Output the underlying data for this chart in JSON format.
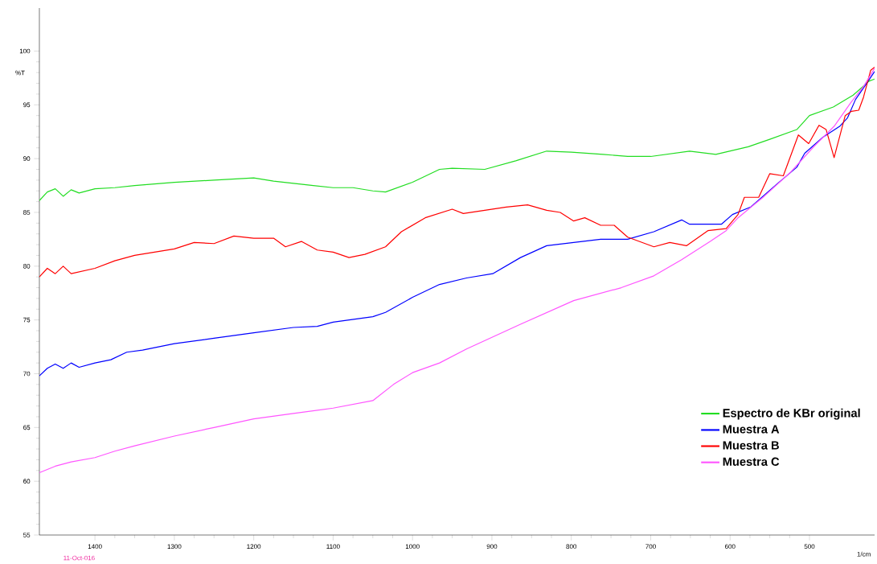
{
  "chart_data": {
    "type": "line",
    "xlabel": "1/cm",
    "ylabel": "%T",
    "annotations": [
      "11-Oct-016"
    ],
    "xlim": [
      1470,
      418
    ],
    "ylim": [
      55,
      104
    ],
    "xticks": [
      1400,
      1300,
      1200,
      1100,
      1000,
      900,
      800,
      700,
      600,
      500
    ],
    "yticks": [
      55,
      60,
      65,
      70,
      75,
      80,
      85,
      90,
      95,
      100
    ],
    "grid": false,
    "legend": "bottom right",
    "marker": "none",
    "line_style": "solid",
    "series": [
      {
        "name": "Espectro de KBr original",
        "color": "#22dd22",
        "x": [
          1470,
          1460,
          1450,
          1440,
          1430,
          1420,
          1400,
          1375,
          1350,
          1300,
          1250,
          1200,
          1175,
          1150,
          1125,
          1100,
          1075,
          1050,
          1034,
          1000,
          966,
          950,
          909,
          870,
          831,
          800,
          760,
          729,
          700,
          651,
          618,
          577,
          550,
          516,
          500,
          470,
          445,
          425,
          418
        ],
        "values": [
          86.1,
          86.9,
          87.2,
          86.5,
          87.1,
          86.8,
          87.2,
          87.3,
          87.5,
          87.8,
          88.0,
          88.2,
          87.9,
          87.7,
          87.5,
          87.3,
          87.3,
          87.0,
          86.9,
          87.8,
          89.0,
          89.1,
          89.0,
          89.8,
          90.7,
          90.6,
          90.4,
          90.2,
          90.2,
          90.7,
          90.4,
          91.1,
          91.8,
          92.7,
          94.0,
          94.8,
          95.9,
          97.2,
          97.4
        ]
      },
      {
        "name": "Muestra A",
        "color": "#0000ff",
        "x": [
          1470,
          1460,
          1450,
          1440,
          1430,
          1420,
          1400,
          1380,
          1360,
          1340,
          1300,
          1250,
          1200,
          1150,
          1120,
          1100,
          1050,
          1034,
          1000,
          966,
          932,
          899,
          864,
          831,
          797,
          763,
          729,
          696,
          661,
          651,
          611,
          597,
          574,
          540,
          516,
          506,
          483,
          462,
          452,
          442,
          428,
          418
        ],
        "values": [
          69.8,
          70.5,
          70.9,
          70.5,
          71.0,
          70.6,
          71.0,
          71.3,
          72.0,
          72.2,
          72.8,
          73.3,
          73.8,
          74.3,
          74.4,
          74.8,
          75.3,
          75.7,
          77.1,
          78.3,
          78.9,
          79.3,
          80.8,
          81.9,
          82.2,
          82.5,
          82.5,
          83.2,
          84.3,
          83.9,
          83.9,
          84.8,
          85.5,
          87.7,
          89.2,
          90.5,
          92.0,
          93.0,
          93.8,
          95.5,
          97.0,
          98.1
        ]
      },
      {
        "name": "Muestra B",
        "color": "#ff0000",
        "x": [
          1470,
          1460,
          1450,
          1440,
          1430,
          1400,
          1375,
          1350,
          1300,
          1275,
          1250,
          1225,
          1200,
          1175,
          1160,
          1140,
          1120,
          1100,
          1080,
          1060,
          1034,
          1014,
          984,
          950,
          936,
          882,
          855,
          831,
          814,
          797,
          783,
          763,
          746,
          729,
          696,
          676,
          655,
          628,
          605,
          590,
          582,
          564,
          550,
          533,
          514,
          501,
          488,
          479,
          469,
          455,
          447,
          438,
          432,
          423,
          418
        ],
        "values": [
          79.0,
          79.8,
          79.3,
          80.0,
          79.3,
          79.8,
          80.5,
          81.0,
          81.6,
          82.2,
          82.1,
          82.8,
          82.6,
          82.6,
          81.8,
          82.3,
          81.5,
          81.3,
          80.8,
          81.1,
          81.8,
          83.2,
          84.5,
          85.3,
          84.9,
          85.5,
          85.7,
          85.2,
          85.0,
          84.2,
          84.5,
          83.8,
          83.8,
          82.7,
          81.8,
          82.2,
          81.9,
          83.3,
          83.5,
          84.8,
          86.4,
          86.4,
          88.6,
          88.4,
          92.2,
          91.4,
          93.1,
          92.7,
          90.1,
          94.0,
          94.4,
          94.5,
          95.7,
          98.2,
          98.5
        ]
      },
      {
        "name": "Muestra C",
        "color": "#ff55ff",
        "x": [
          1470,
          1450,
          1430,
          1400,
          1375,
          1350,
          1300,
          1250,
          1200,
          1150,
          1100,
          1050,
          1024,
          1000,
          966,
          932,
          864,
          797,
          737,
          696,
          661,
          625,
          605,
          590,
          557,
          523,
          496,
          469,
          448,
          432,
          418
        ],
        "values": [
          60.8,
          61.4,
          61.8,
          62.2,
          62.8,
          63.3,
          64.2,
          65.0,
          65.8,
          66.3,
          66.8,
          67.5,
          69.0,
          70.1,
          71.0,
          72.3,
          74.6,
          76.8,
          78.0,
          79.1,
          80.6,
          82.3,
          83.3,
          84.5,
          86.5,
          88.8,
          91.0,
          93.0,
          95.2,
          96.7,
          98.4
        ]
      }
    ]
  }
}
